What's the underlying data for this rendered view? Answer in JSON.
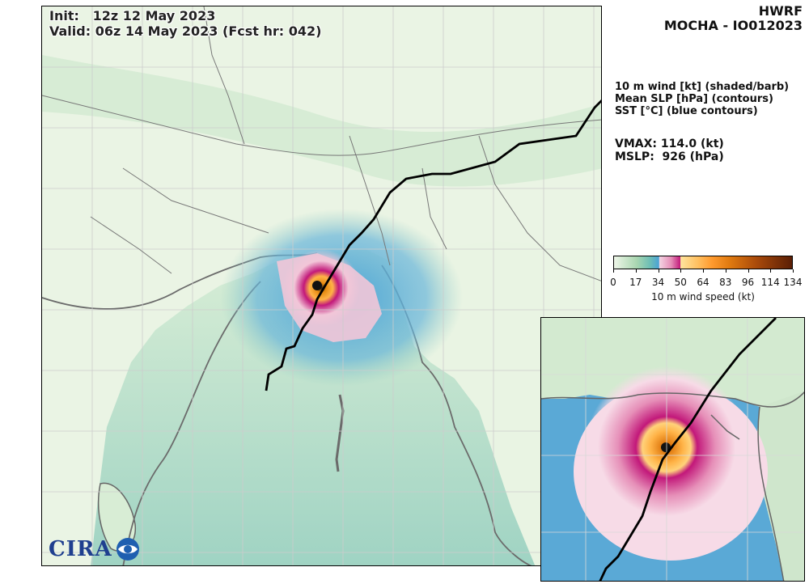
{
  "header": {
    "init": "Init:   12z 12 May 2023",
    "valid": "Valid: 06z 14 May 2023 (Fcst hr: 042)",
    "model": "HWRF",
    "storm": "MOCHA - IO012023"
  },
  "fields": [
    "10 m wind [kt] (shaded/barb)",
    "Mean SLP [hPa] (contours)",
    "SST [°C] (blue contours)"
  ],
  "stats": {
    "vmax": "VMAX: 114.0 (kt)",
    "mslp": "MSLP:  926 (hPa)"
  },
  "colorbar": {
    "ticks": [
      "0",
      "17",
      "34",
      "50",
      "64",
      "83",
      "96",
      "114",
      "134"
    ],
    "label": "10 m wind speed (kt)"
  },
  "logo": {
    "text": "CIRA"
  },
  "chart_data": {
    "type": "heatmap",
    "variable": "10 m wind speed (kt)",
    "colorbar_range": [
      0,
      134
    ],
    "colorbar_ticks": [
      0,
      17,
      34,
      50,
      64,
      83,
      96,
      114,
      134
    ],
    "colors": {
      "calm": "#eef6e8",
      "light": "#a9d6b0",
      "moderate": "#4aa3d6",
      "gale": "#f2c6d8",
      "storm": "#c2187a",
      "hurricane": "#ffb347",
      "major": "#e07a10",
      "extreme": "#5a1e05"
    },
    "track": "black forecast track line",
    "inset": "zoomed storm core"
  }
}
